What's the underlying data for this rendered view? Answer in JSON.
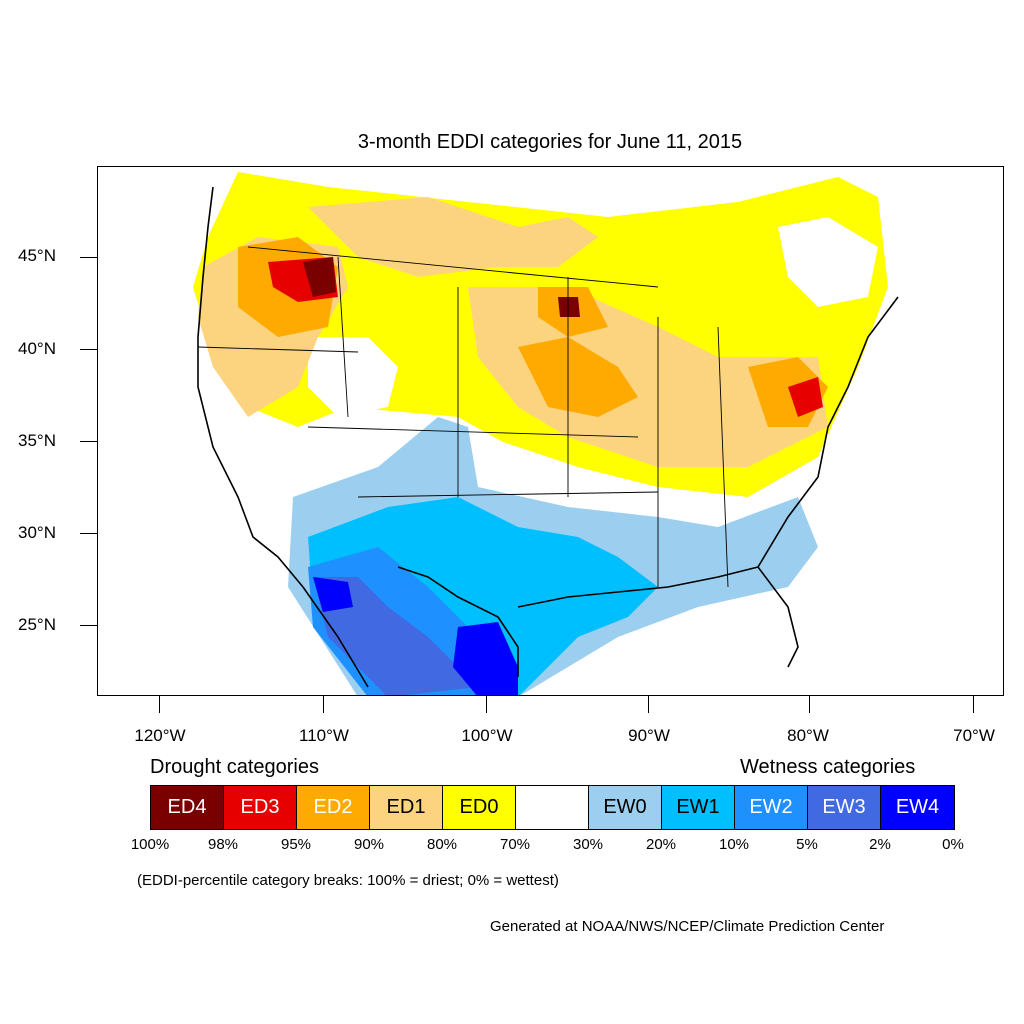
{
  "title": "3-month EDDI categories for June 11, 2015",
  "axes": {
    "lat_labels": [
      "45°N",
      "40°N",
      "35°N",
      "30°N",
      "25°N"
    ],
    "lon_labels": [
      "120°W",
      "110°W",
      "100°W",
      "90°W",
      "80°W",
      "70°W"
    ]
  },
  "legend": {
    "drought_heading": "Drought categories",
    "wetness_heading": "Wetness categories",
    "categories": [
      {
        "label": "ED4",
        "color": "#7a0000",
        "text_color": "#ffffff"
      },
      {
        "label": "ED3",
        "color": "#e60000",
        "text_color": "#ffffff"
      },
      {
        "label": "ED2",
        "color": "#ffaa00",
        "text_color": "#ffffff"
      },
      {
        "label": "ED1",
        "color": "#fcd37f",
        "text_color": "#000000"
      },
      {
        "label": "ED0",
        "color": "#ffff00",
        "text_color": "#000000"
      },
      {
        "label": "",
        "color": "#ffffff",
        "text_color": "#000000"
      },
      {
        "label": "EW0",
        "color": "#9ccfef",
        "text_color": "#000000"
      },
      {
        "label": "EW1",
        "color": "#00bfff",
        "text_color": "#000000"
      },
      {
        "label": "EW2",
        "color": "#1e90ff",
        "text_color": "#ffffff"
      },
      {
        "label": "EW3",
        "color": "#4169e1",
        "text_color": "#ffffff"
      },
      {
        "label": "EW4",
        "color": "#0000ff",
        "text_color": "#ffffff"
      }
    ],
    "percent_breaks": [
      "100%",
      "98%",
      "95%",
      "90%",
      "80%",
      "70%",
      "30%",
      "20%",
      "10%",
      "5%",
      "2%",
      "0%"
    ]
  },
  "note": "(EDDI-percentile category breaks: 100% = driest; 0% = wettest)",
  "credit": "Generated at NOAA/NWS/NCEP/Climate Prediction Center"
}
